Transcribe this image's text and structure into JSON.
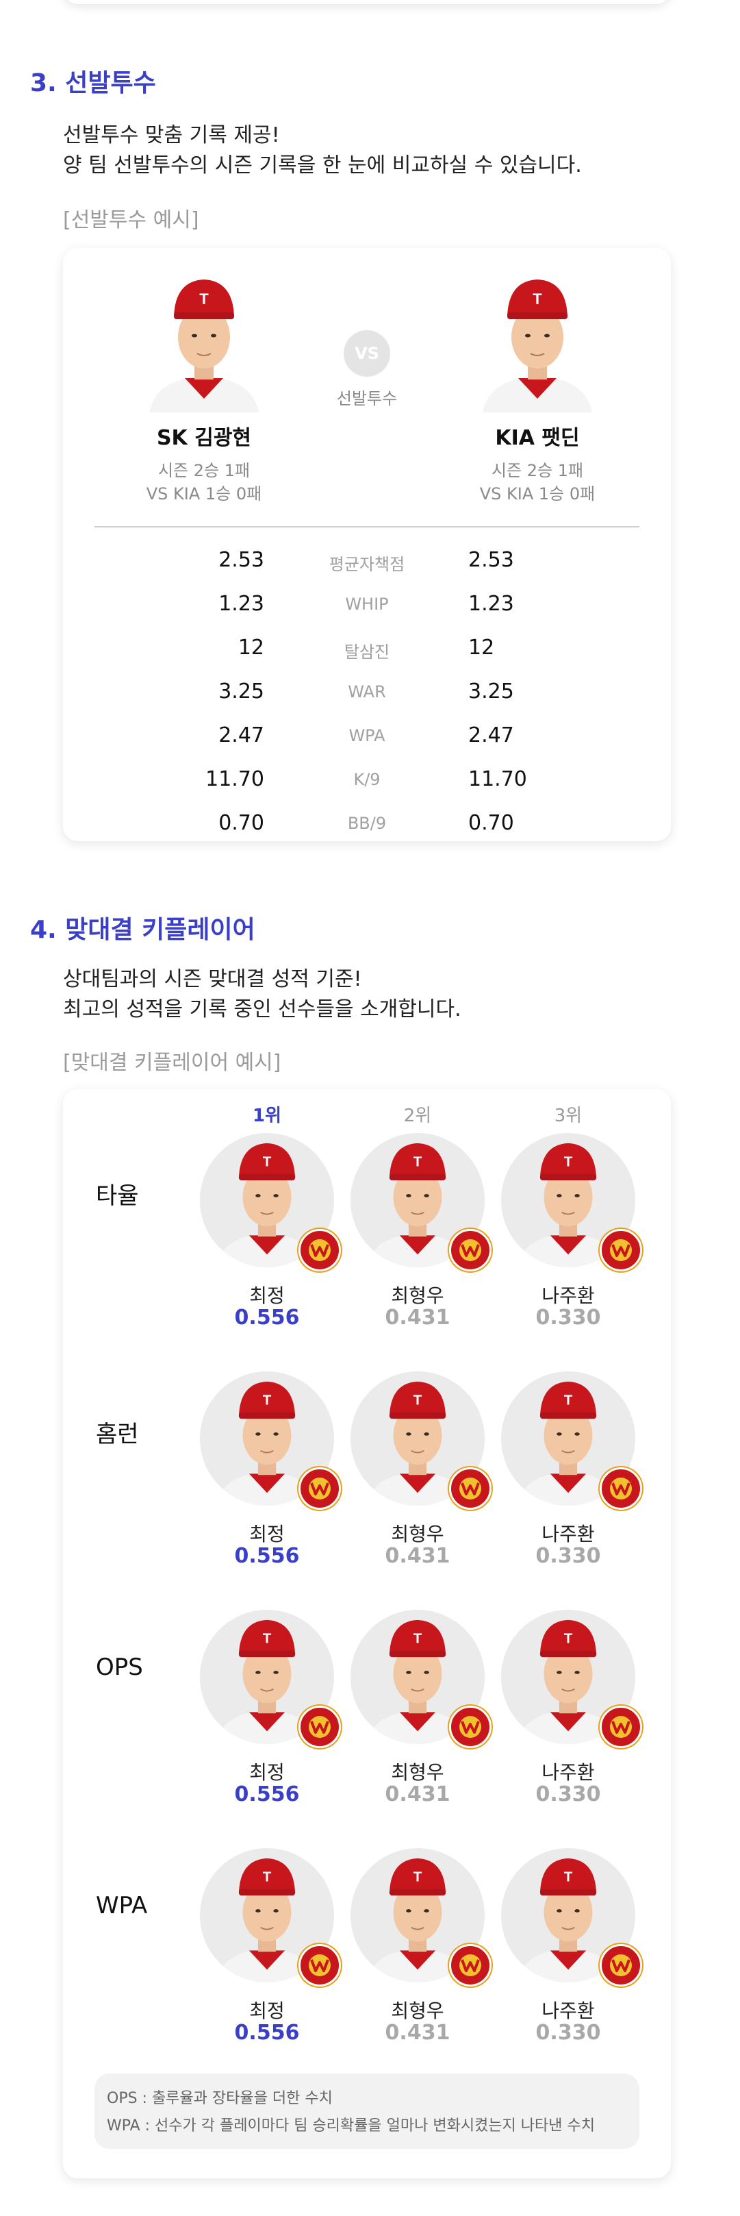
{
  "section3": {
    "title": "3. 선발투수",
    "desc1": "선발투수 맞춤 기록 제공!",
    "desc2": "양 팀 선발투수의 시즌 기록을 한 눈에 비교하실 수 있습니다.",
    "example": "[선발투수 예시]",
    "vs": "VS",
    "vs_label": "선발투수",
    "left": {
      "name": "SK 김광현",
      "season": "시즌 2승 1패",
      "vs_record": "VS KIA 1승 0패"
    },
    "right": {
      "name": "KIA 팻딘",
      "season": "시즌 2승 1패",
      "vs_record": "VS KIA 1승 0패"
    },
    "stats": [
      {
        "label": "평균자책점",
        "left": "2.53",
        "right": "2.53"
      },
      {
        "label": "WHIP",
        "left": "1.23",
        "right": "1.23"
      },
      {
        "label": "탈삼진",
        "left": "12",
        "right": "12"
      },
      {
        "label": "WAR",
        "left": "3.25",
        "right": "3.25"
      },
      {
        "label": "WPA",
        "left": "2.47",
        "right": "2.47"
      },
      {
        "label": "K/9",
        "left": "11.70",
        "right": "11.70"
      },
      {
        "label": "BB/9",
        "left": "0.70",
        "right": "0.70"
      }
    ]
  },
  "section4": {
    "title": "4. 맞대결 키플레이어",
    "desc1": "상대팀과의 시즌 맞대결 성적 기준!",
    "desc2": "최고의 성적을 기록 중인 선수들을 소개합니다.",
    "example": "[맞대결 키플레이어 예시]",
    "ranks": [
      "1위",
      "2위",
      "3위"
    ],
    "categories": [
      {
        "label": "타율",
        "players": [
          {
            "name": "최정",
            "value": "0.556"
          },
          {
            "name": "최형우",
            "value": "0.431"
          },
          {
            "name": "나주환",
            "value": "0.330"
          }
        ]
      },
      {
        "label": "홈런",
        "players": [
          {
            "name": "최정",
            "value": "0.556"
          },
          {
            "name": "최형우",
            "value": "0.431"
          },
          {
            "name": "나주환",
            "value": "0.330"
          }
        ]
      },
      {
        "label": "OPS",
        "players": [
          {
            "name": "최정",
            "value": "0.556"
          },
          {
            "name": "최형우",
            "value": "0.431"
          },
          {
            "name": "나주환",
            "value": "0.330"
          }
        ]
      },
      {
        "label": "WPA",
        "players": [
          {
            "name": "최정",
            "value": "0.556"
          },
          {
            "name": "최형우",
            "value": "0.431"
          },
          {
            "name": "나주환",
            "value": "0.330"
          }
        ]
      }
    ],
    "note1": "OPS : 출루율과 장타율을 더한 수치",
    "note2": "WPA : 선수가 각 플레이마다 팀 승리확률을 얼마나 변화시켰는지 나타낸 수치"
  },
  "colors": {
    "accent": "#3a3fc8",
    "cap_red": "#c8161d",
    "muted": "#a8a8a8"
  },
  "icons": {
    "player_photo": "player-photo-icon",
    "team_badge": "team-logo-badge-icon"
  }
}
